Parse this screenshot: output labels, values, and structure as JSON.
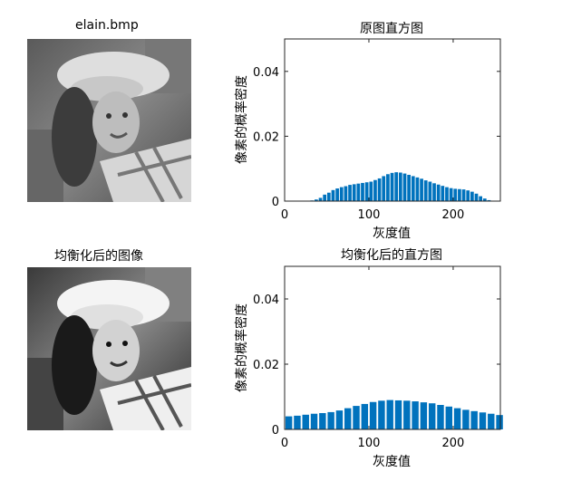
{
  "figure": {
    "image_titles": [
      "elain.bmp",
      "均衡化后的图像"
    ]
  },
  "chart_data": [
    {
      "type": "bar",
      "title": "原图直方图",
      "xlabel": "灰度值",
      "ylabel": "像素的概率密度",
      "xlim": [
        0,
        256
      ],
      "ylim": [
        0,
        0.05
      ],
      "xticks": [
        0,
        100,
        200
      ],
      "yticks": [
        0,
        0.02,
        0.04
      ],
      "ytick_labels": [
        "0",
        "0.02",
        "0.04"
      ],
      "bar_color": "#0072BD",
      "x": [
        30,
        35,
        40,
        45,
        50,
        55,
        60,
        65,
        70,
        75,
        80,
        85,
        90,
        95,
        100,
        105,
        110,
        115,
        120,
        125,
        130,
        135,
        140,
        145,
        150,
        155,
        160,
        165,
        170,
        175,
        180,
        185,
        190,
        195,
        200,
        205,
        210,
        215,
        220,
        225,
        230,
        235,
        240,
        245
      ],
      "values": [
        0.0002,
        0.0005,
        0.001,
        0.002,
        0.0026,
        0.0034,
        0.0039,
        0.0043,
        0.0046,
        0.005,
        0.0052,
        0.0054,
        0.0056,
        0.0058,
        0.006,
        0.0065,
        0.007,
        0.0077,
        0.0083,
        0.0087,
        0.0089,
        0.0088,
        0.0085,
        0.0081,
        0.0077,
        0.0073,
        0.0069,
        0.0064,
        0.006,
        0.0055,
        0.0051,
        0.0047,
        0.0043,
        0.004,
        0.0038,
        0.0037,
        0.0036,
        0.0033,
        0.0029,
        0.0023,
        0.0015,
        0.0008,
        0.0003,
        0.0001
      ]
    },
    {
      "type": "bar",
      "title": "均衡化后的直方图",
      "xlabel": "灰度值",
      "ylabel": "像素的概率密度",
      "xlim": [
        0,
        256
      ],
      "ylim": [
        0,
        0.05
      ],
      "xticks": [
        0,
        100,
        200
      ],
      "yticks": [
        0,
        0.02,
        0.04
      ],
      "ytick_labels": [
        "0",
        "0.02",
        "0.04"
      ],
      "bar_color": "#0072BD",
      "x": [
        0,
        10,
        20,
        30,
        40,
        50,
        60,
        70,
        80,
        90,
        100,
        110,
        120,
        130,
        140,
        150,
        160,
        170,
        180,
        190,
        200,
        210,
        220,
        230,
        240,
        250
      ],
      "values": [
        0.004,
        0.0042,
        0.0045,
        0.0048,
        0.005,
        0.0053,
        0.0058,
        0.0065,
        0.0072,
        0.0078,
        0.0084,
        0.0088,
        0.009,
        0.0089,
        0.0088,
        0.0086,
        0.0083,
        0.008,
        0.0075,
        0.007,
        0.0065,
        0.006,
        0.0056,
        0.0052,
        0.0048,
        0.0044
      ]
    }
  ]
}
